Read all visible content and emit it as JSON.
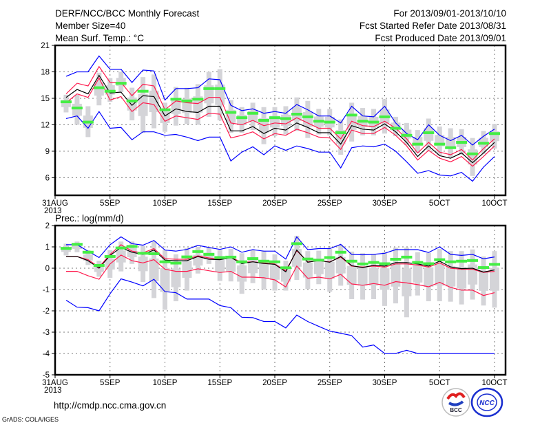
{
  "header": {
    "title": "DERF/NCC/BCC Monthly Forecast",
    "member_size": "Member Size=40",
    "period": "For 2013/09/01-2013/10/10",
    "started_refer": "Fcst Started Refer Date 2013/08/31",
    "produced": "Fcst Produced Date 2013/09/01"
  },
  "footer": {
    "url": "http://cmdp.ncc.cma.gov.cn",
    "credit": "GrADS: COLA/IGES",
    "logo_bcc": "BCC",
    "logo_ncc": "NCC"
  },
  "colors": {
    "max_min": "#0000ff",
    "spread": "#ff1a4d",
    "mean": "#000000",
    "obs": "#44ee44",
    "box": "#d4d4d8"
  },
  "chart_data": [
    {
      "type": "line",
      "title": "Mean Surf. Temp.: °C",
      "xlabel": "",
      "ylabel": "",
      "year_label": "2013",
      "x_ticks": [
        {
          "day": 0,
          "label": "31AUG"
        },
        {
          "day": 5,
          "label": "5SEP"
        },
        {
          "day": 10,
          "label": "10SEP"
        },
        {
          "day": 15,
          "label": "15SEP"
        },
        {
          "day": 20,
          "label": "20SEP"
        },
        {
          "day": 25,
          "label": "25SEP"
        },
        {
          "day": 30,
          "label": "30SEP"
        },
        {
          "day": 35,
          "label": "5OCT"
        },
        {
          "day": 40,
          "label": "10OCT"
        }
      ],
      "y_ticks": [
        6,
        9,
        12,
        15,
        18,
        21
      ],
      "ylim": [
        4,
        21
      ],
      "grid": true,
      "x_days": [
        1,
        2,
        3,
        4,
        5,
        6,
        7,
        8,
        9,
        10,
        11,
        12,
        13,
        14,
        15,
        16,
        17,
        18,
        19,
        20,
        21,
        22,
        23,
        24,
        25,
        26,
        27,
        28,
        29,
        30,
        31,
        32,
        33,
        34,
        35,
        36,
        37,
        38,
        39,
        40
      ],
      "series": [
        {
          "name": "max",
          "color": "#0000ff",
          "values": [
            17.5,
            18.0,
            18.0,
            19.8,
            18.3,
            18.3,
            16.8,
            18.2,
            18.1,
            14.8,
            16.1,
            16.1,
            16.2,
            17.2,
            17.1,
            14.2,
            13.6,
            13.8,
            13.3,
            13.5,
            13.3,
            14.3,
            13.7,
            13.0,
            13.0,
            12.2,
            14.1,
            13.0,
            12.9,
            14.1,
            12.2,
            11.0,
            10.3,
            12.0,
            10.8,
            10.2,
            10.8,
            9.7,
            10.7,
            11.5
          ]
        },
        {
          "name": "upper",
          "color": "#ff1a4d",
          "values": [
            15.5,
            16.7,
            16.4,
            18.6,
            16.8,
            16.8,
            15.3,
            16.6,
            16.4,
            13.7,
            14.7,
            14.5,
            14.4,
            15.1,
            15.1,
            12.2,
            12.0,
            12.5,
            11.9,
            12.2,
            12.1,
            12.8,
            12.2,
            11.6,
            11.6,
            10.4,
            12.4,
            11.9,
            11.8,
            12.4,
            11.6,
            10.4,
            8.8,
            10.0,
            8.9,
            8.6,
            9.2,
            8.0,
            9.3,
            10.4
          ]
        },
        {
          "name": "mean",
          "color": "#000000",
          "values": [
            15.1,
            16.0,
            15.5,
            17.6,
            15.6,
            15.7,
            14.2,
            15.3,
            15.2,
            13.0,
            13.8,
            13.5,
            13.4,
            14.1,
            14.1,
            11.3,
            11.3,
            11.8,
            11.0,
            11.6,
            11.4,
            12.2,
            11.7,
            11.1,
            11.1,
            9.8,
            11.9,
            11.5,
            11.4,
            12.1,
            11.2,
            10.0,
            8.4,
            9.6,
            8.5,
            8.2,
            8.8,
            7.7,
            8.8,
            10.0
          ]
        },
        {
          "name": "lower",
          "color": "#ff1a4d",
          "values": [
            14.5,
            15.5,
            15.1,
            17.3,
            14.8,
            15.2,
            13.5,
            14.5,
            14.3,
            12.4,
            13.0,
            12.8,
            12.6,
            13.3,
            13.2,
            10.5,
            10.8,
            11.2,
            10.4,
            11.0,
            10.8,
            11.5,
            11.1,
            10.6,
            10.5,
            9.2,
            11.4,
            11.0,
            11.0,
            11.7,
            10.8,
            9.6,
            8.0,
            9.1,
            8.2,
            7.8,
            8.4,
            7.3,
            8.4,
            9.6
          ]
        },
        {
          "name": "min",
          "color": "#0000ff",
          "values": [
            12.7,
            13.0,
            11.6,
            13.5,
            11.6,
            11.7,
            10.3,
            11.2,
            11.2,
            10.8,
            10.9,
            10.6,
            10.2,
            10.6,
            10.6,
            7.9,
            8.9,
            9.5,
            8.6,
            9.6,
            9.1,
            9.6,
            9.3,
            8.9,
            8.9,
            7.1,
            9.4,
            9.6,
            9.5,
            9.8,
            9.0,
            7.8,
            6.5,
            6.8,
            6.3,
            6.2,
            6.6,
            5.6,
            7.2,
            8.4
          ]
        }
      ],
      "obs": [
        14.6,
        13.9,
        12.3,
        16.2,
        15.8,
        16.7,
        14.7,
        15.8,
        null,
        13.7,
        14.9,
        14.7,
        14.9,
        16.1,
        16.1,
        13.4,
        12.8,
        13.3,
        12.5,
        12.8,
        12.7,
        13.2,
        12.9,
        12.4,
        12.3,
        11.1,
        13.1,
        12.4,
        12.3,
        12.9,
        11.6,
        10.8,
        9.8,
        11.1,
        9.8,
        9.4,
        10.0,
        8.7,
        9.9,
        11.0
      ],
      "range_low": [
        13.4,
        12.0,
        10.6,
        14.2,
        14.6,
        15.7,
        12.5,
        11.1,
        11.6,
        11.2,
        11.9,
        12.1,
        12.0,
        12.9,
        12.5,
        11.1,
        11.1,
        11.4,
        9.8,
        10.7,
        10.9,
        11.3,
        10.5,
        10.9,
        10.8,
        8.6,
        10.1,
        10.8,
        10.8,
        11.0,
        10.7,
        9.7,
        8.8,
        9.1,
        8.6,
        8.3,
        8.6,
        6.2,
        8.7,
        9.3
      ],
      "range_high": [
        15.4,
        15.4,
        14.1,
        17.9,
        17.3,
        18.0,
        16.2,
        17.4,
        17.7,
        14.5,
        16.3,
        16.2,
        16.6,
        18.0,
        18.3,
        14.8,
        14.0,
        14.5,
        14.0,
        14.0,
        14.1,
        15.1,
        14.7,
        13.8,
        13.8,
        12.6,
        14.5,
        13.9,
        13.8,
        14.9,
        12.9,
        12.2,
        11.4,
        12.7,
        11.8,
        11.6,
        11.5,
        10.5,
        11.3,
        12.1
      ]
    },
    {
      "type": "line",
      "title": "Prec.: log(mm/d)",
      "xlabel": "",
      "ylabel": "",
      "year_label": "2013",
      "x_ticks": [
        {
          "day": 0,
          "label": "31AUG"
        },
        {
          "day": 5,
          "label": "5SEP"
        },
        {
          "day": 10,
          "label": "10SEP"
        },
        {
          "day": 15,
          "label": "15SEP"
        },
        {
          "day": 20,
          "label": "20SEP"
        },
        {
          "day": 25,
          "label": "25SEP"
        },
        {
          "day": 30,
          "label": "30SEP"
        },
        {
          "day": 35,
          "label": "5OCT"
        },
        {
          "day": 40,
          "label": "10OCT"
        }
      ],
      "y_ticks": [
        -5,
        -4,
        -3,
        -2,
        -1,
        0,
        1,
        2
      ],
      "ylim": [
        -5,
        2
      ],
      "grid": true,
      "x_days": [
        1,
        2,
        3,
        4,
        5,
        6,
        7,
        8,
        9,
        10,
        11,
        12,
        13,
        14,
        15,
        16,
        17,
        18,
        19,
        20,
        21,
        22,
        23,
        24,
        25,
        26,
        27,
        28,
        29,
        30,
        31,
        32,
        33,
        34,
        35,
        36,
        37,
        38,
        39,
        40
      ],
      "series": [
        {
          "name": "max",
          "color": "#0000ff",
          "values": [
            1.1,
            1.1,
            0.8,
            0.5,
            1.1,
            1.47,
            1.15,
            1.08,
            1.3,
            0.85,
            0.8,
            0.88,
            1.07,
            0.97,
            0.88,
            1.0,
            0.75,
            0.87,
            0.8,
            0.8,
            0.43,
            1.47,
            0.87,
            0.92,
            0.92,
            1.12,
            0.65,
            0.63,
            0.65,
            0.7,
            0.87,
            0.87,
            0.87,
            0.74,
            1.0,
            0.65,
            0.6,
            0.65,
            0.44,
            0.53
          ]
        },
        {
          "name": "upper",
          "color": "#ff1a4d",
          "values": [
            0.55,
            0.55,
            0.4,
            0.05,
            0.65,
            1.1,
            0.8,
            0.72,
            0.92,
            0.45,
            0.42,
            0.42,
            0.58,
            0.48,
            0.42,
            0.5,
            0.28,
            0.3,
            0.25,
            0.2,
            -0.12,
            0.82,
            0.3,
            0.35,
            0.3,
            0.52,
            0.1,
            0.05,
            0.1,
            0.05,
            0.2,
            0.2,
            0.15,
            0.05,
            0.25,
            0.0,
            -0.05,
            -0.05,
            -0.2,
            -0.15
          ]
        },
        {
          "name": "mean",
          "color": "#000000",
          "values": [
            0.55,
            0.55,
            0.35,
            0.0,
            0.6,
            0.97,
            0.75,
            0.65,
            0.85,
            0.38,
            0.35,
            0.35,
            0.55,
            0.42,
            0.4,
            0.5,
            0.22,
            0.3,
            0.22,
            0.18,
            -0.17,
            0.85,
            0.28,
            0.36,
            0.28,
            0.55,
            0.12,
            0.03,
            0.14,
            0.1,
            0.26,
            0.26,
            0.2,
            0.1,
            0.33,
            0.06,
            -0.02,
            0.0,
            -0.18,
            -0.08
          ]
        },
        {
          "name": "lower",
          "color": "#ff1a4d",
          "values": [
            -0.15,
            -0.15,
            -0.35,
            -0.52,
            0.2,
            0.62,
            0.35,
            0.25,
            0.4,
            -0.05,
            -0.15,
            -0.15,
            -0.03,
            -0.12,
            -0.2,
            -0.15,
            -0.42,
            -0.42,
            -0.45,
            -0.55,
            -0.88,
            0.1,
            -0.47,
            -0.42,
            -0.5,
            -0.29,
            -0.74,
            -0.8,
            -0.72,
            -0.8,
            -0.63,
            -0.69,
            -0.77,
            -0.87,
            -0.66,
            -0.9,
            -1.03,
            -1.03,
            -1.28,
            -1.15
          ]
        },
        {
          "name": "min",
          "color": "#0000ff",
          "values": [
            -1.5,
            -1.83,
            -1.85,
            -2.0,
            -1.2,
            -0.5,
            -0.65,
            -0.83,
            -0.52,
            -1.1,
            -1.15,
            -1.45,
            -1.45,
            -1.45,
            -1.75,
            -1.85,
            -2.3,
            -2.32,
            -2.5,
            -2.5,
            -2.8,
            -2.2,
            -2.5,
            -2.73,
            -2.95,
            -3.05,
            -3.16,
            -3.7,
            -3.6,
            -4.0,
            -4.0,
            -3.85,
            -4.0,
            -4.0,
            -4.0,
            -4.0,
            -4.0,
            -4.0,
            -4.0,
            -4.0
          ]
        }
      ],
      "obs": [
        0.93,
        1.12,
        0.75,
        0.13,
        0.55,
        0.95,
        1.02,
        0.7,
        0.68,
        0.3,
        0.24,
        0.53,
        0.78,
        0.65,
        0.5,
        0.52,
        0.3,
        0.45,
        0.33,
        0.3,
        0.02,
        1.15,
        0.43,
        0.38,
        0.5,
        0.75,
        0.33,
        0.2,
        0.27,
        0.21,
        0.42,
        0.52,
        0.27,
        0.21,
        0.4,
        0.3,
        0.33,
        0.36,
        0.03,
        0.18
      ],
      "range_low": [
        0.6,
        0.75,
        0.15,
        -0.4,
        -0.45,
        -0.15,
        0.2,
        -0.65,
        -1.4,
        -1.95,
        -1.55,
        -1.05,
        -0.25,
        0.2,
        -0.6,
        -0.62,
        -1.2,
        -0.7,
        -1.0,
        -1.05,
        -1.05,
        -0.55,
        -0.97,
        -0.75,
        -1.1,
        -0.82,
        -1.45,
        -1.47,
        -1.45,
        -1.77,
        -1.65,
        -2.3,
        -1.28,
        -1.55,
        -1.55,
        -1.57,
        -1.7,
        -1.47,
        -1.75,
        -1.85
      ],
      "range_high": [
        1.15,
        1.25,
        0.85,
        0.35,
        0.85,
        1.25,
        1.25,
        1.05,
        1.25,
        0.85,
        0.65,
        0.95,
        1.0,
        0.95,
        0.85,
        0.9,
        0.7,
        0.85,
        0.8,
        0.65,
        0.35,
        1.52,
        0.8,
        0.82,
        0.9,
        1.1,
        0.78,
        0.7,
        0.67,
        0.75,
        0.97,
        0.97,
        0.75,
        0.72,
        0.9,
        0.8,
        0.8,
        0.88,
        0.55,
        0.8
      ]
    }
  ]
}
